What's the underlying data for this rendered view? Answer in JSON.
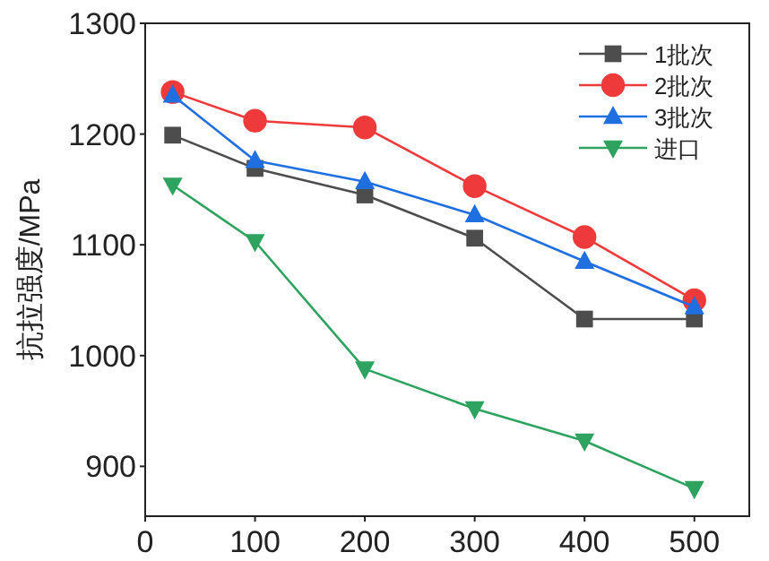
{
  "chart_data": {
    "type": "line",
    "ylabel": "抗拉强度/MPa",
    "xlim": [
      0,
      550
    ],
    "xticks": [
      0,
      100,
      200,
      300,
      400,
      500
    ],
    "ylim": [
      855,
      1300
    ],
    "yticks": [
      900,
      1000,
      1100,
      1200,
      1300
    ],
    "grid": false,
    "legend": "top right",
    "series": [
      {
        "name": "1批次",
        "color": "#4d4d4d",
        "marker": "square",
        "x": [
          25,
          100,
          200,
          300,
          400,
          500
        ],
        "values": [
          1199,
          1169,
          1145,
          1106,
          1033,
          1033
        ]
      },
      {
        "name": "2批次",
        "color": "#ee3a3a",
        "marker": "circle",
        "x": [
          25,
          100,
          200,
          300,
          400,
          500
        ],
        "values": [
          1238,
          1212,
          1206,
          1153,
          1107,
          1050
        ]
      },
      {
        "name": "3批次",
        "color": "#1f6fe0",
        "marker": "triangle",
        "x": [
          25,
          100,
          200,
          300,
          400,
          500
        ],
        "values": [
          1235,
          1176,
          1157,
          1127,
          1085,
          1044
        ]
      },
      {
        "name": "进口",
        "color": "#2ea35f",
        "marker": "triangle-down",
        "x": [
          25,
          100,
          200,
          300,
          400,
          500
        ],
        "values": [
          1154,
          1103,
          988,
          952,
          923,
          880
        ]
      }
    ]
  }
}
